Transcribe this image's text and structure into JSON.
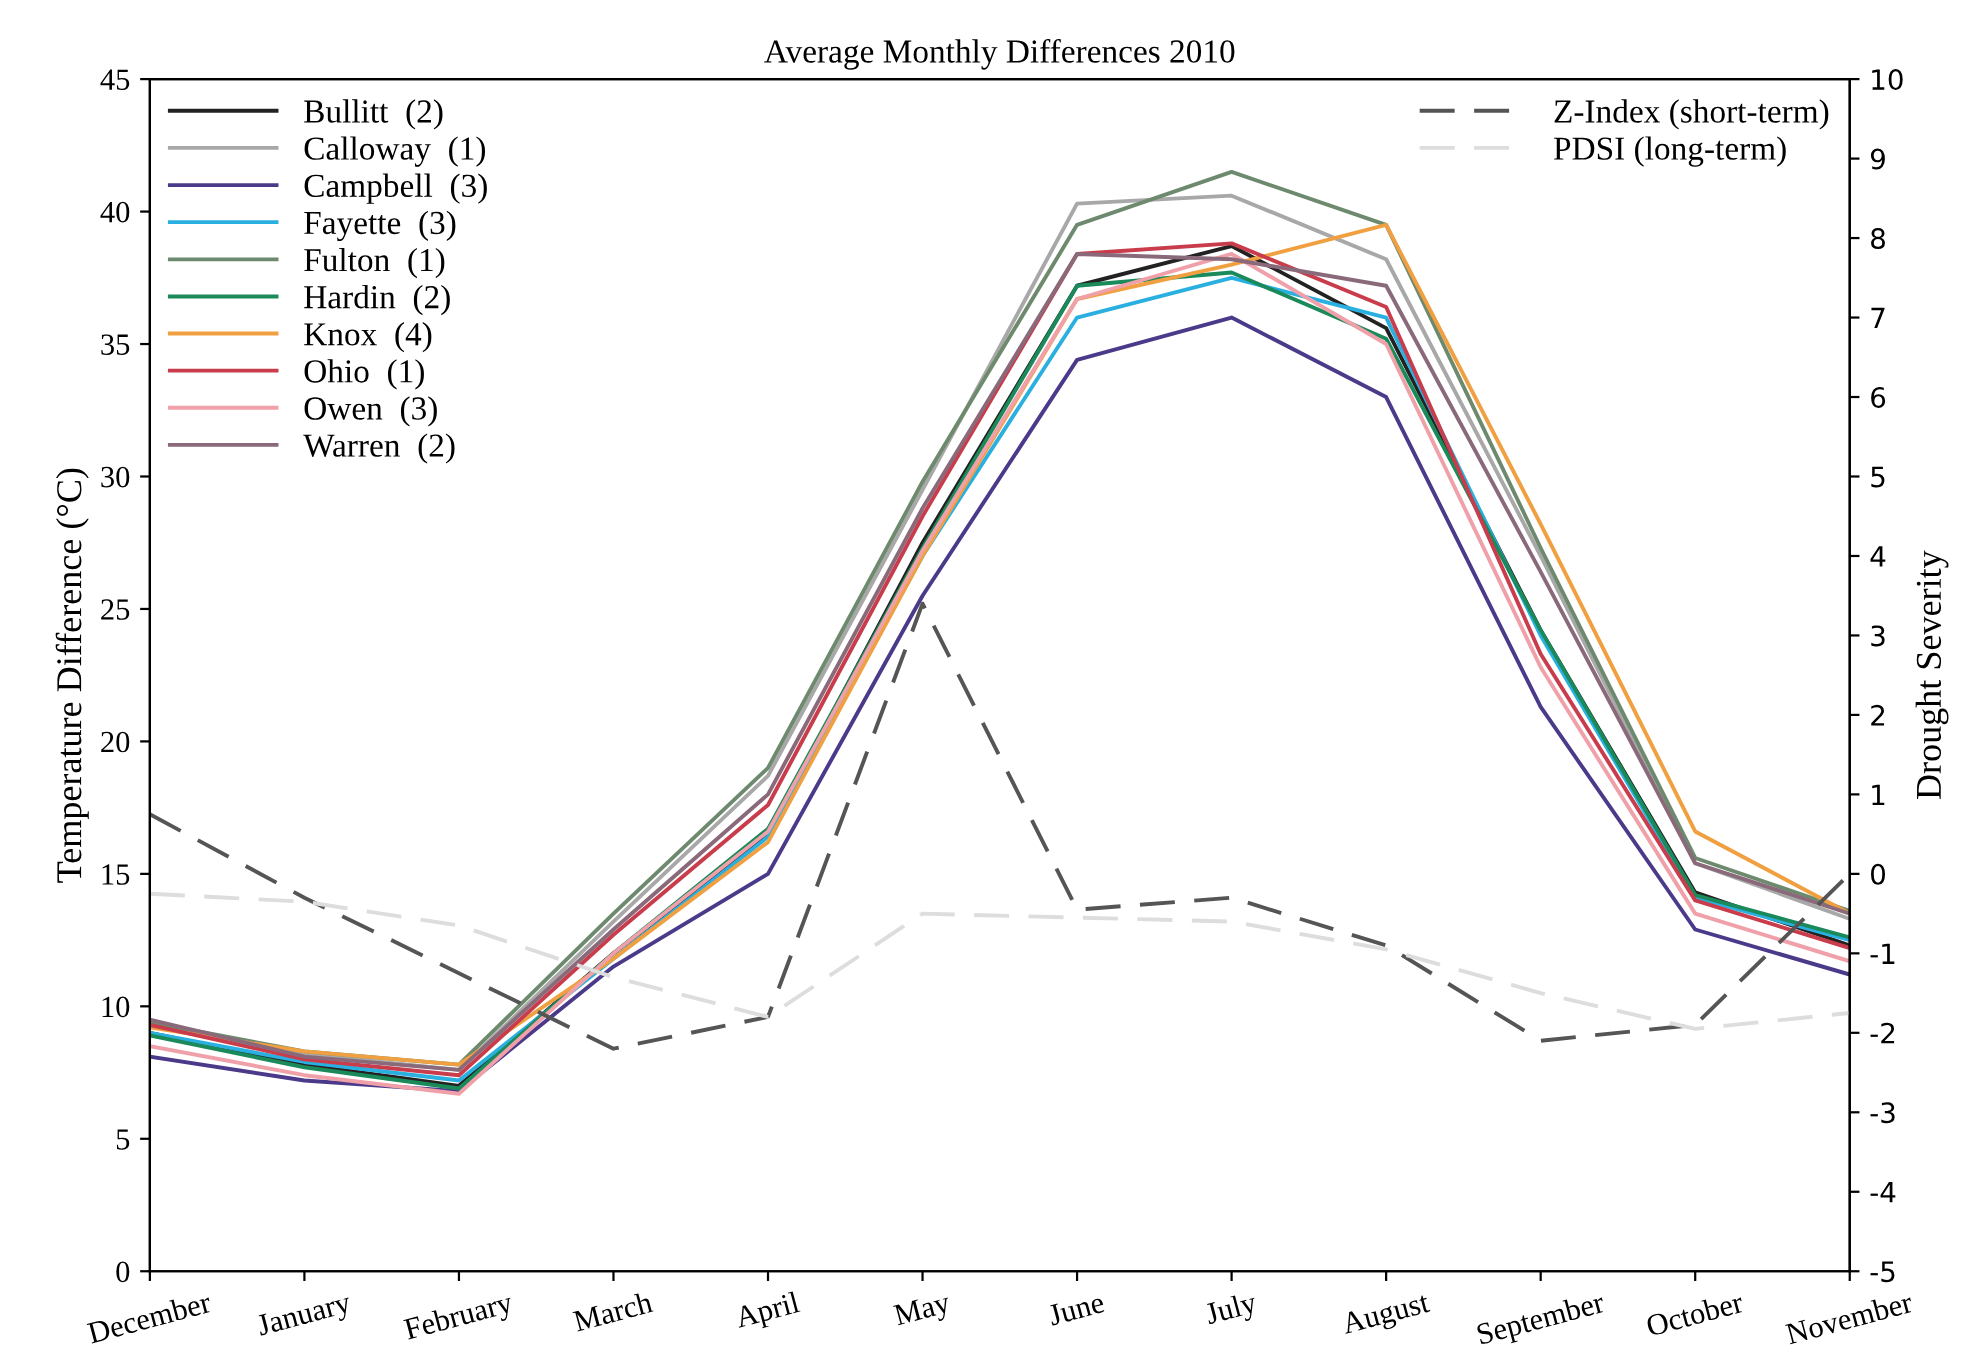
{
  "chart_data": {
    "type": "line",
    "title": "Average Monthly Differences 2010",
    "ylabel": "Temperature Difference (°C)",
    "y2label": "Drought Severity",
    "categories": [
      "December",
      "January",
      "February",
      "March",
      "April",
      "May",
      "June",
      "July",
      "August",
      "September",
      "October",
      "November"
    ],
    "ylim": [
      0,
      45
    ],
    "yticks": [
      0,
      5,
      10,
      15,
      20,
      25,
      30,
      35,
      40,
      45
    ],
    "y2lim": [
      -5,
      10
    ],
    "y2ticks": [
      -5,
      -4,
      -3,
      -2,
      -1,
      0,
      1,
      2,
      3,
      4,
      5,
      6,
      7,
      8,
      9,
      10
    ],
    "grid": false,
    "legend": "top left",
    "marker": "none",
    "series": [
      {
        "name": "Bullitt  (2)",
        "color": "#222222",
        "values": [
          9.0,
          7.8,
          7.0,
          12.0,
          16.5,
          27.5,
          37.2,
          38.7,
          35.6,
          24.2,
          14.3,
          12.3
        ]
      },
      {
        "name": "Calloway  (1)",
        "color": "#a8a8a8",
        "values": [
          9.3,
          8.2,
          7.6,
          13.2,
          18.7,
          29.5,
          40.3,
          40.6,
          38.2,
          27.0,
          15.4,
          13.3
        ]
      },
      {
        "name": "Campbell  (3)",
        "color": "#4b3a8a",
        "values": [
          8.1,
          7.2,
          6.8,
          11.5,
          15.0,
          25.5,
          34.4,
          36.0,
          33.0,
          21.3,
          12.9,
          11.2
        ]
      },
      {
        "name": "Fayette  (3)",
        "color": "#2ab0e0",
        "values": [
          9.0,
          7.9,
          7.2,
          11.8,
          16.4,
          27.0,
          36.0,
          37.5,
          36.0,
          24.0,
          14.1,
          12.5
        ]
      },
      {
        "name": "Fulton  (1)",
        "color": "#6e8a6e",
        "values": [
          9.4,
          8.3,
          7.8,
          13.5,
          19.0,
          29.8,
          39.5,
          41.5,
          39.5,
          27.3,
          15.6,
          13.6
        ]
      },
      {
        "name": "Hardin  (2)",
        "color": "#1a8a5a",
        "values": [
          8.9,
          7.7,
          6.9,
          12.0,
          16.7,
          27.3,
          37.2,
          37.7,
          35.2,
          24.2,
          14.2,
          12.6
        ]
      },
      {
        "name": "Knox  (4)",
        "color": "#f0a040",
        "values": [
          9.2,
          8.3,
          7.8,
          11.8,
          16.2,
          27.0,
          36.7,
          38.0,
          39.5,
          28.2,
          16.6,
          13.5
        ]
      },
      {
        "name": "Ohio  (1)",
        "color": "#c83c4c",
        "values": [
          9.3,
          8.0,
          7.4,
          12.7,
          17.6,
          28.5,
          38.4,
          38.8,
          36.4,
          23.3,
          14.0,
          12.2
        ]
      },
      {
        "name": "Owen  (3)",
        "color": "#f0a0a8",
        "values": [
          8.5,
          7.4,
          6.7,
          12.0,
          16.6,
          27.2,
          36.7,
          38.4,
          35.0,
          22.8,
          13.5,
          11.7
        ]
      },
      {
        "name": "Warren  (2)",
        "color": "#8a6a7a",
        "values": [
          9.5,
          8.1,
          7.6,
          12.9,
          18.0,
          28.8,
          38.4,
          38.2,
          37.2,
          26.4,
          15.4,
          13.5
        ]
      },
      {
        "name": "Z-Index (short-term)",
        "color": "#555555",
        "axis": "y2",
        "line_style": "dashed",
        "values": [
          0.75,
          -0.3,
          -1.25,
          -2.2,
          -1.8,
          3.4,
          -0.45,
          -0.3,
          -0.9,
          -2.1,
          -1.9,
          0.0
        ]
      },
      {
        "name": "PDSI (long-term)",
        "color": "#dddddd",
        "axis": "y2",
        "line_style": "dashed",
        "values": [
          -0.25,
          -0.35,
          -0.65,
          -1.3,
          -1.8,
          -0.5,
          -0.55,
          -0.6,
          -0.95,
          -1.5,
          -1.95,
          -1.75
        ]
      }
    ]
  }
}
